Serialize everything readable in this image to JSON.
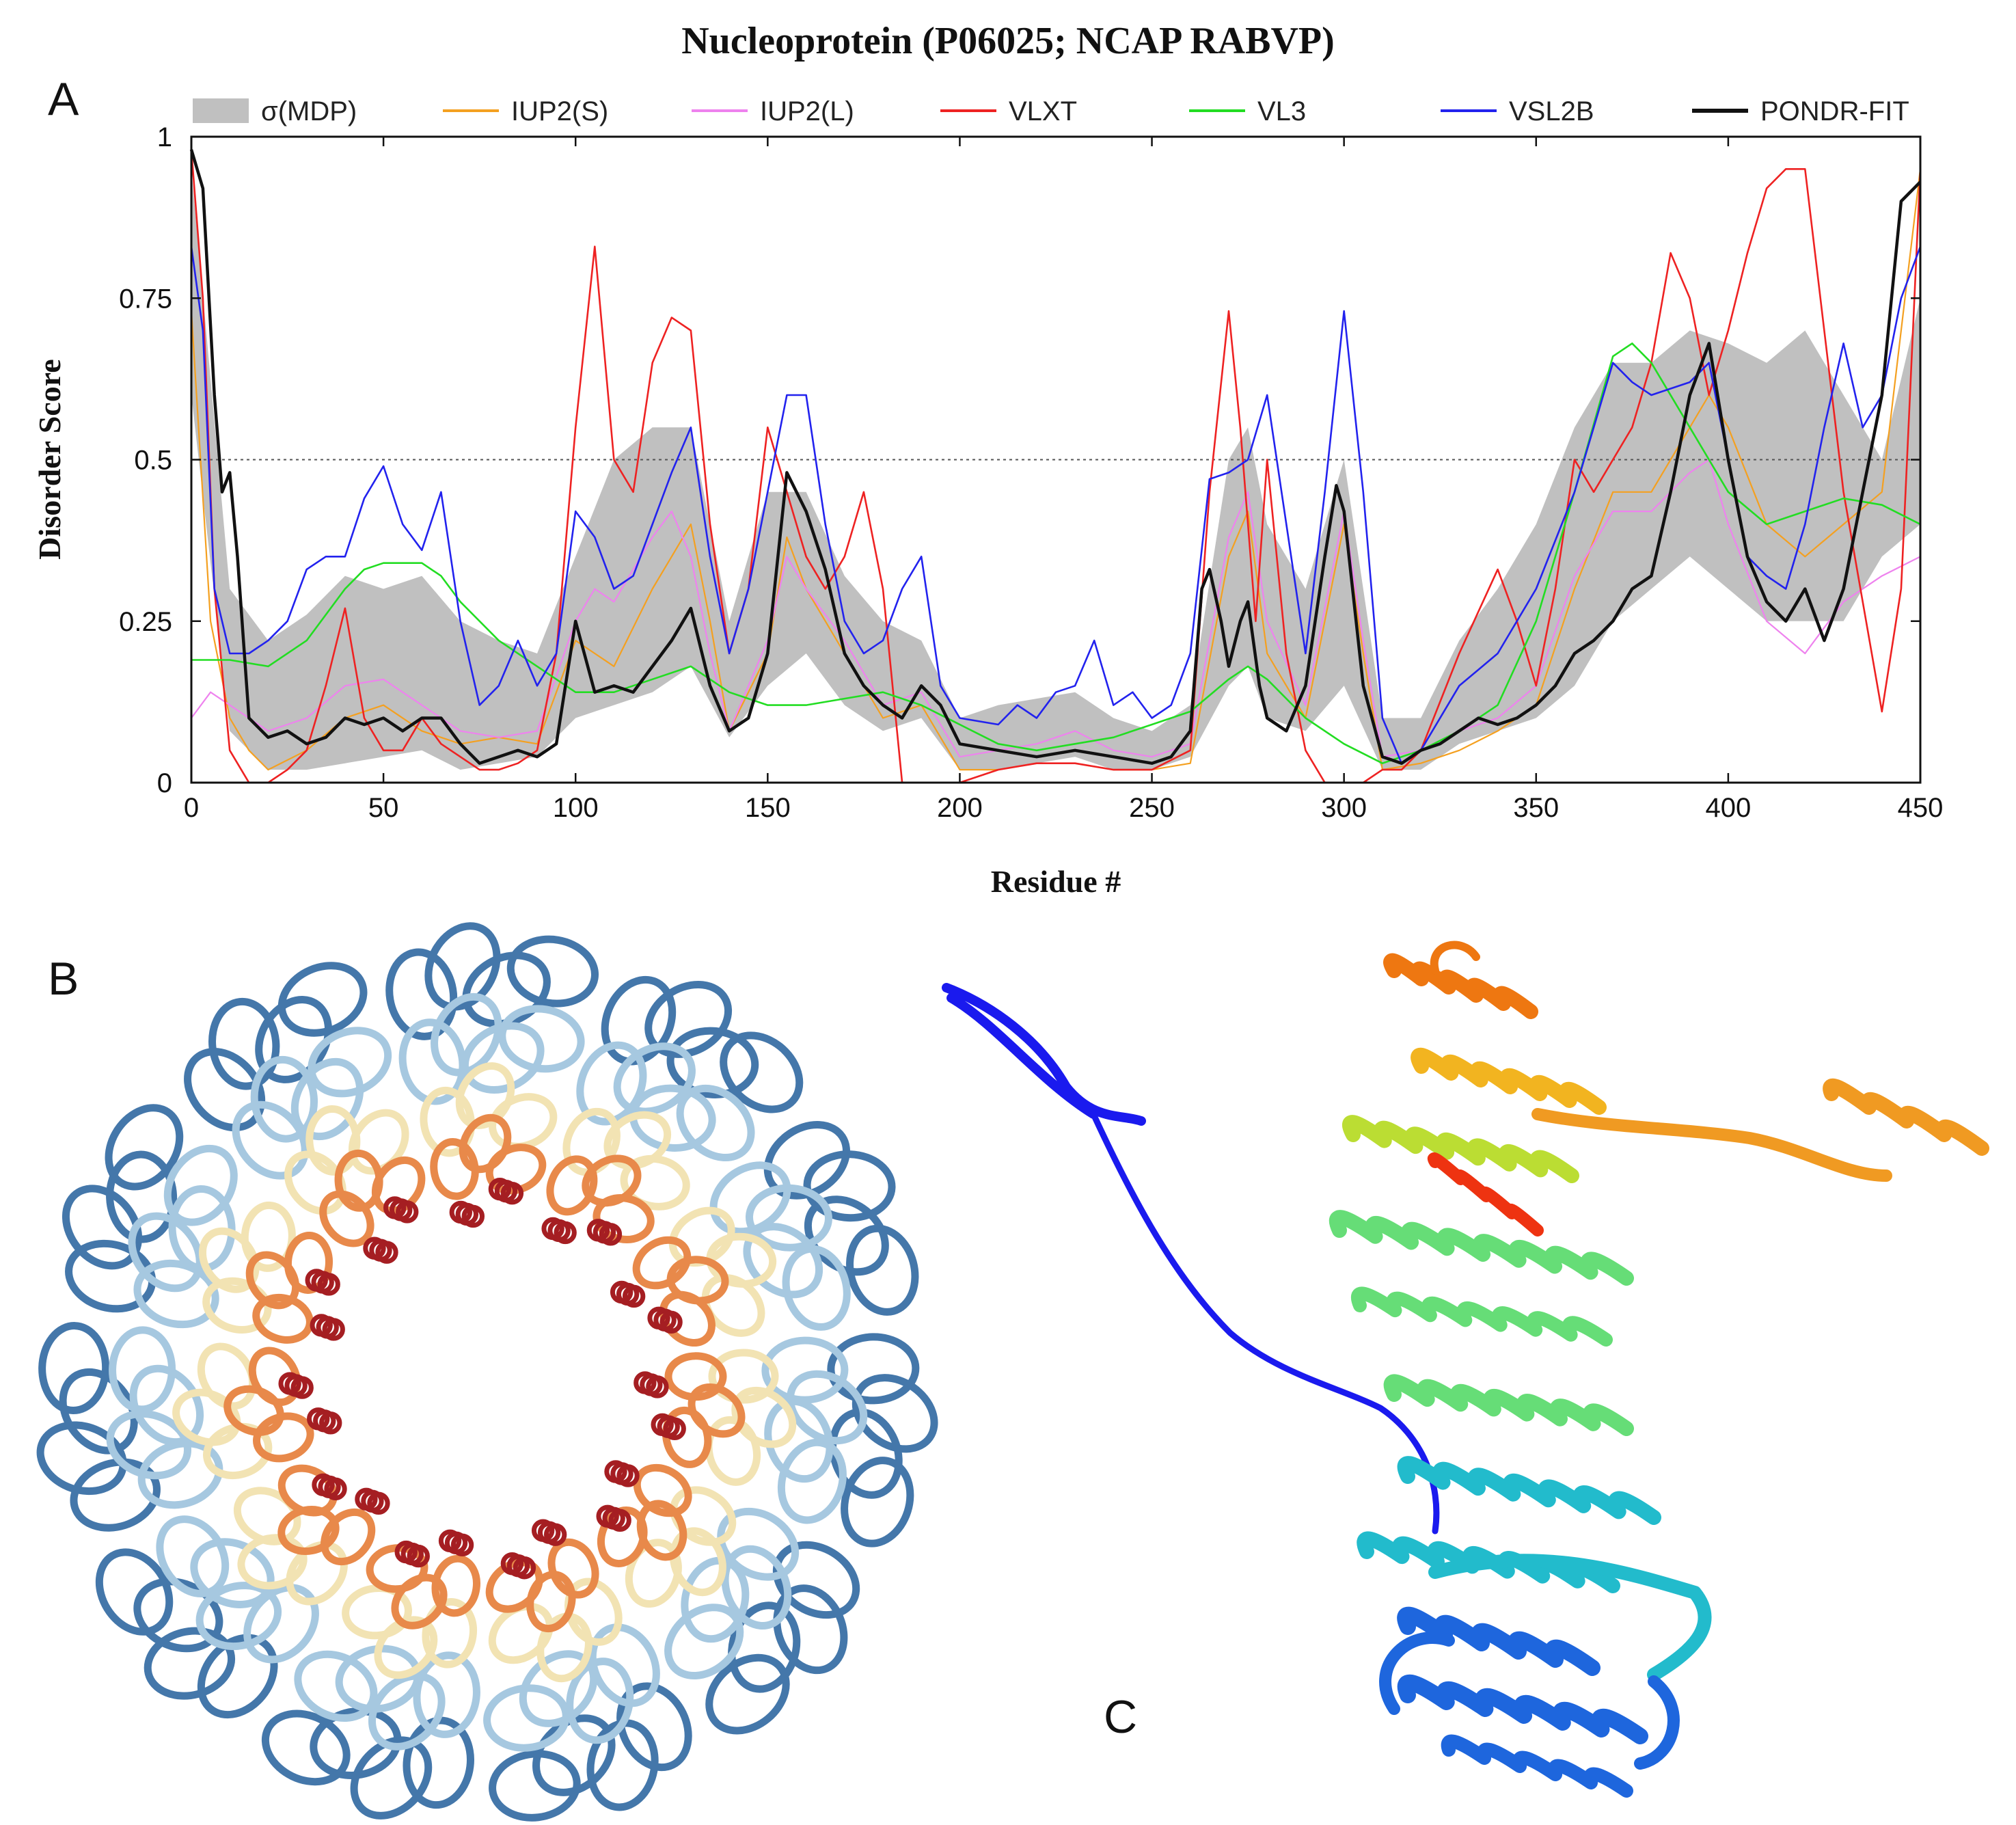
{
  "figure": {
    "panel_labels": {
      "a": "A",
      "b": "B",
      "c": "C"
    }
  },
  "chart_data": {
    "type": "line",
    "title": "Nucleoprotein (P06025; NCAP RABVP)",
    "xlabel": "Residue #",
    "ylabel": "Disorder Score",
    "xlim": [
      0,
      450
    ],
    "ylim": [
      0,
      1
    ],
    "xticks": [
      "0",
      "50",
      "100",
      "150",
      "200",
      "250",
      "300",
      "350",
      "400",
      "450"
    ],
    "yticks": [
      "0",
      "0.25",
      "0.5",
      "0.75",
      "1"
    ],
    "threshold": 0.5,
    "legend_position": "top",
    "band": {
      "name": "σ(MDP)",
      "color": "#c0c0c0",
      "x": [
        0,
        10,
        20,
        30,
        40,
        50,
        60,
        70,
        80,
        90,
        100,
        110,
        120,
        130,
        140,
        150,
        160,
        170,
        180,
        190,
        200,
        210,
        220,
        230,
        240,
        250,
        260,
        270,
        275,
        280,
        290,
        300,
        310,
        320,
        330,
        340,
        350,
        360,
        370,
        380,
        390,
        400,
        410,
        420,
        430,
        440,
        450
      ],
      "upper": [
        0.95,
        0.3,
        0.22,
        0.26,
        0.32,
        0.3,
        0.32,
        0.25,
        0.22,
        0.2,
        0.35,
        0.5,
        0.55,
        0.55,
        0.25,
        0.45,
        0.45,
        0.32,
        0.25,
        0.22,
        0.1,
        0.12,
        0.13,
        0.14,
        0.1,
        0.08,
        0.12,
        0.5,
        0.55,
        0.4,
        0.3,
        0.5,
        0.1,
        0.1,
        0.22,
        0.3,
        0.4,
        0.55,
        0.65,
        0.65,
        0.7,
        0.68,
        0.65,
        0.7,
        0.6,
        0.5,
        0.75
      ],
      "lower": [
        0.6,
        0.08,
        0.02,
        0.02,
        0.03,
        0.04,
        0.05,
        0.02,
        0.03,
        0.04,
        0.1,
        0.12,
        0.14,
        0.18,
        0.07,
        0.15,
        0.2,
        0.12,
        0.08,
        0.1,
        0.02,
        0.02,
        0.03,
        0.04,
        0.02,
        0.02,
        0.04,
        0.15,
        0.18,
        0.1,
        0.08,
        0.15,
        0.02,
        0.02,
        0.06,
        0.08,
        0.1,
        0.15,
        0.25,
        0.3,
        0.35,
        0.3,
        0.25,
        0.25,
        0.25,
        0.35,
        0.4
      ]
    },
    "series": [
      {
        "name": "IUP2(S)",
        "color": "#f4a020",
        "width": 2.2,
        "x": [
          0,
          5,
          10,
          15,
          20,
          30,
          40,
          50,
          60,
          70,
          80,
          90,
          100,
          105,
          110,
          120,
          125,
          130,
          135,
          140,
          150,
          155,
          160,
          170,
          180,
          190,
          200,
          210,
          220,
          230,
          240,
          250,
          260,
          270,
          275,
          280,
          290,
          300,
          305,
          310,
          320,
          330,
          340,
          350,
          360,
          370,
          380,
          390,
          395,
          400,
          410,
          420,
          430,
          440,
          450
        ],
        "values": [
          0.73,
          0.25,
          0.1,
          0.05,
          0.02,
          0.05,
          0.1,
          0.12,
          0.08,
          0.06,
          0.07,
          0.06,
          0.22,
          0.2,
          0.18,
          0.3,
          0.35,
          0.4,
          0.25,
          0.08,
          0.2,
          0.38,
          0.3,
          0.2,
          0.1,
          0.12,
          0.02,
          0.02,
          0.03,
          0.03,
          0.02,
          0.02,
          0.03,
          0.35,
          0.42,
          0.2,
          0.1,
          0.4,
          0.2,
          0.02,
          0.03,
          0.05,
          0.08,
          0.12,
          0.3,
          0.45,
          0.45,
          0.55,
          0.6,
          0.55,
          0.4,
          0.35,
          0.4,
          0.45,
          0.95
        ]
      },
      {
        "name": "IUP2(L)",
        "color": "#ee82ee",
        "width": 2.2,
        "x": [
          0,
          5,
          10,
          15,
          20,
          30,
          40,
          50,
          60,
          70,
          80,
          90,
          100,
          105,
          110,
          120,
          125,
          130,
          135,
          140,
          150,
          155,
          160,
          170,
          180,
          190,
          200,
          210,
          220,
          230,
          240,
          250,
          260,
          270,
          275,
          280,
          290,
          300,
          305,
          310,
          320,
          330,
          340,
          350,
          360,
          370,
          380,
          390,
          395,
          400,
          410,
          420,
          430,
          440,
          450
        ],
        "values": [
          0.1,
          0.14,
          0.12,
          0.1,
          0.08,
          0.1,
          0.15,
          0.16,
          0.12,
          0.08,
          0.07,
          0.08,
          0.25,
          0.3,
          0.28,
          0.38,
          0.42,
          0.35,
          0.2,
          0.08,
          0.22,
          0.35,
          0.3,
          0.22,
          0.12,
          0.14,
          0.04,
          0.05,
          0.06,
          0.08,
          0.05,
          0.04,
          0.06,
          0.38,
          0.45,
          0.25,
          0.12,
          0.42,
          0.22,
          0.04,
          0.05,
          0.08,
          0.1,
          0.15,
          0.32,
          0.42,
          0.42,
          0.48,
          0.5,
          0.4,
          0.25,
          0.2,
          0.28,
          0.32,
          0.35
        ]
      },
      {
        "name": "VLXT",
        "color": "#ee2222",
        "width": 2.6,
        "x": [
          0,
          3,
          6,
          10,
          15,
          20,
          25,
          30,
          35,
          40,
          45,
          50,
          55,
          60,
          65,
          70,
          75,
          80,
          85,
          90,
          95,
          100,
          105,
          110,
          115,
          120,
          125,
          130,
          135,
          140,
          145,
          150,
          155,
          160,
          165,
          170,
          175,
          180,
          185,
          190,
          195,
          200,
          210,
          220,
          230,
          240,
          250,
          260,
          265,
          270,
          273,
          277,
          280,
          285,
          290,
          295,
          300,
          305,
          310,
          315,
          320,
          330,
          340,
          345,
          350,
          355,
          360,
          365,
          370,
          375,
          380,
          385,
          390,
          395,
          400,
          405,
          410,
          415,
          420,
          425,
          430,
          440,
          445,
          450
        ],
        "values": [
          0.98,
          0.75,
          0.3,
          0.05,
          0.0,
          0.0,
          0.02,
          0.05,
          0.15,
          0.27,
          0.1,
          0.05,
          0.05,
          0.1,
          0.06,
          0.04,
          0.02,
          0.02,
          0.03,
          0.05,
          0.2,
          0.55,
          0.83,
          0.5,
          0.45,
          0.65,
          0.72,
          0.7,
          0.4,
          0.2,
          0.3,
          0.55,
          0.45,
          0.35,
          0.3,
          0.35,
          0.45,
          0.3,
          0.0,
          0.0,
          0.0,
          0.0,
          0.02,
          0.03,
          0.03,
          0.02,
          0.02,
          0.05,
          0.45,
          0.73,
          0.55,
          0.25,
          0.5,
          0.2,
          0.05,
          0.0,
          0.0,
          0.0,
          0.02,
          0.02,
          0.05,
          0.2,
          0.33,
          0.25,
          0.15,
          0.3,
          0.5,
          0.45,
          0.5,
          0.55,
          0.65,
          0.82,
          0.75,
          0.6,
          0.7,
          0.82,
          0.92,
          0.95,
          0.95,
          0.7,
          0.45,
          0.11,
          0.3,
          0.95
        ]
      },
      {
        "name": "VL3",
        "color": "#22dd22",
        "width": 2.6,
        "x": [
          0,
          10,
          20,
          30,
          40,
          45,
          50,
          60,
          65,
          70,
          80,
          90,
          100,
          110,
          120,
          130,
          140,
          150,
          160,
          170,
          180,
          190,
          200,
          210,
          220,
          230,
          240,
          250,
          260,
          270,
          275,
          280,
          290,
          300,
          310,
          320,
          330,
          340,
          350,
          360,
          370,
          375,
          380,
          390,
          400,
          410,
          420,
          430,
          440,
          450
        ],
        "values": [
          0.19,
          0.19,
          0.18,
          0.22,
          0.3,
          0.33,
          0.34,
          0.34,
          0.32,
          0.28,
          0.22,
          0.18,
          0.14,
          0.14,
          0.16,
          0.18,
          0.14,
          0.12,
          0.12,
          0.13,
          0.14,
          0.12,
          0.09,
          0.06,
          0.05,
          0.06,
          0.07,
          0.09,
          0.11,
          0.16,
          0.18,
          0.16,
          0.1,
          0.06,
          0.03,
          0.05,
          0.08,
          0.12,
          0.25,
          0.45,
          0.66,
          0.68,
          0.65,
          0.55,
          0.45,
          0.4,
          0.42,
          0.44,
          0.43,
          0.4
        ]
      },
      {
        "name": "VSL2B",
        "color": "#2222ee",
        "width": 2.6,
        "x": [
          0,
          3,
          6,
          10,
          15,
          20,
          25,
          30,
          35,
          40,
          45,
          50,
          55,
          60,
          65,
          70,
          75,
          80,
          85,
          90,
          95,
          100,
          105,
          110,
          115,
          120,
          125,
          130,
          135,
          140,
          145,
          150,
          155,
          160,
          165,
          170,
          175,
          180,
          185,
          190,
          195,
          200,
          210,
          215,
          220,
          225,
          230,
          235,
          240,
          245,
          250,
          255,
          260,
          265,
          270,
          275,
          280,
          285,
          290,
          295,
          300,
          305,
          310,
          315,
          320,
          330,
          340,
          350,
          360,
          365,
          370,
          375,
          380,
          390,
          395,
          400,
          405,
          410,
          415,
          420,
          425,
          430,
          435,
          440,
          445,
          450
        ],
        "values": [
          0.83,
          0.7,
          0.3,
          0.2,
          0.2,
          0.22,
          0.25,
          0.33,
          0.35,
          0.35,
          0.44,
          0.49,
          0.4,
          0.36,
          0.45,
          0.25,
          0.12,
          0.15,
          0.22,
          0.15,
          0.2,
          0.42,
          0.38,
          0.3,
          0.32,
          0.4,
          0.48,
          0.55,
          0.35,
          0.2,
          0.3,
          0.45,
          0.6,
          0.6,
          0.4,
          0.25,
          0.2,
          0.22,
          0.3,
          0.35,
          0.15,
          0.1,
          0.09,
          0.12,
          0.1,
          0.14,
          0.15,
          0.22,
          0.12,
          0.14,
          0.1,
          0.12,
          0.2,
          0.47,
          0.48,
          0.5,
          0.6,
          0.4,
          0.2,
          0.45,
          0.73,
          0.45,
          0.1,
          0.03,
          0.05,
          0.15,
          0.2,
          0.3,
          0.45,
          0.55,
          0.65,
          0.62,
          0.6,
          0.62,
          0.65,
          0.5,
          0.35,
          0.32,
          0.3,
          0.4,
          0.55,
          0.68,
          0.55,
          0.6,
          0.75,
          0.83
        ]
      },
      {
        "name": "PONDR-FIT",
        "color": "#111111",
        "width": 4.5,
        "x": [
          0,
          3,
          6,
          8,
          10,
          12,
          15,
          20,
          25,
          30,
          35,
          40,
          45,
          50,
          55,
          60,
          65,
          70,
          75,
          80,
          85,
          90,
          95,
          100,
          105,
          110,
          115,
          120,
          125,
          130,
          135,
          140,
          145,
          150,
          155,
          160,
          165,
          170,
          175,
          180,
          185,
          190,
          195,
          200,
          210,
          220,
          230,
          240,
          250,
          255,
          260,
          263,
          265,
          268,
          270,
          273,
          275,
          278,
          280,
          285,
          290,
          295,
          298,
          300,
          305,
          310,
          315,
          320,
          325,
          330,
          335,
          340,
          345,
          350,
          355,
          360,
          365,
          370,
          375,
          380,
          385,
          390,
          395,
          400,
          405,
          410,
          415,
          420,
          425,
          430,
          435,
          440,
          445,
          450
        ],
        "values": [
          0.98,
          0.92,
          0.6,
          0.45,
          0.48,
          0.35,
          0.1,
          0.07,
          0.08,
          0.06,
          0.07,
          0.1,
          0.09,
          0.1,
          0.08,
          0.1,
          0.1,
          0.06,
          0.03,
          0.04,
          0.05,
          0.04,
          0.06,
          0.25,
          0.14,
          0.15,
          0.14,
          0.18,
          0.22,
          0.27,
          0.15,
          0.08,
          0.1,
          0.2,
          0.48,
          0.42,
          0.33,
          0.2,
          0.15,
          0.12,
          0.1,
          0.15,
          0.12,
          0.06,
          0.05,
          0.04,
          0.05,
          0.04,
          0.03,
          0.04,
          0.08,
          0.3,
          0.33,
          0.25,
          0.18,
          0.25,
          0.28,
          0.15,
          0.1,
          0.08,
          0.15,
          0.35,
          0.46,
          0.42,
          0.15,
          0.04,
          0.03,
          0.05,
          0.06,
          0.08,
          0.1,
          0.09,
          0.1,
          0.12,
          0.15,
          0.2,
          0.22,
          0.25,
          0.3,
          0.32,
          0.45,
          0.6,
          0.68,
          0.5,
          0.35,
          0.28,
          0.25,
          0.3,
          0.22,
          0.3,
          0.45,
          0.6,
          0.9,
          0.93
        ]
      }
    ]
  },
  "structures": {
    "ring_colors": [
      "#4477aa",
      "#a6c8e0",
      "#f2e3b3",
      "#e8894a",
      "#a51e22"
    ],
    "ribbon_colors": [
      "#1a1aee",
      "#1e66dd",
      "#22bbcc",
      "#66dd77",
      "#bbdd33",
      "#f2b420",
      "#ee7711",
      "#ee3311",
      "#f09a22"
    ]
  }
}
